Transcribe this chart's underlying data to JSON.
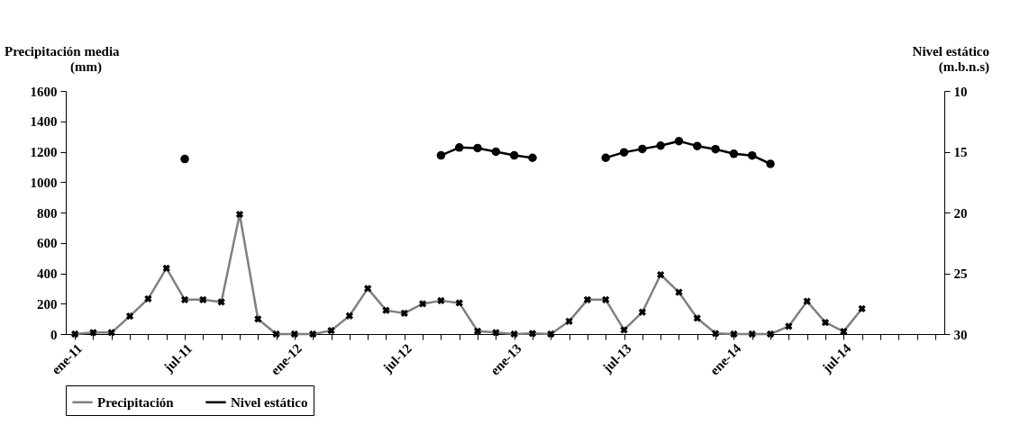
{
  "chart_data": {
    "type": "line",
    "ylabel": "Precipitación media (mm)",
    "y2label": "Nivel estático (m.b.n.s)",
    "categories": [
      "ene-11",
      null,
      null,
      null,
      null,
      null,
      "jul-11",
      null,
      null,
      null,
      null,
      null,
      "ene-12",
      null,
      null,
      null,
      null,
      null,
      "jul-12",
      null,
      null,
      null,
      null,
      null,
      "ene-13",
      null,
      null,
      null,
      null,
      null,
      "jul-13",
      null,
      null,
      null,
      null,
      null,
      "ene-14",
      null,
      null,
      null,
      null,
      null,
      "jul-14",
      null,
      null,
      null,
      null,
      null
    ],
    "series": [
      {
        "name": "Precipitación",
        "color": "#808080",
        "marker": "cross",
        "values": [
          0,
          10,
          10,
          118,
          232,
          433,
          226,
          226,
          211,
          788,
          99,
          0,
          0,
          0,
          23,
          120,
          300,
          156,
          137,
          199,
          220,
          205,
          19,
          10,
          0,
          4,
          0,
          84,
          226,
          226,
          27,
          144,
          391,
          275,
          104,
          4,
          0,
          0,
          0,
          51,
          216,
          76,
          17,
          167,
          null,
          null,
          null,
          null
        ]
      },
      {
        "name": "Nivel estático",
        "color": "#000000",
        "marker": "circle",
        "axis": "y2",
        "values": [
          null,
          null,
          null,
          null,
          null,
          null,
          15.6,
          null,
          null,
          null,
          null,
          null,
          null,
          null,
          null,
          null,
          null,
          null,
          null,
          null,
          15.3,
          14.65,
          14.7,
          15.0,
          15.3,
          15.5,
          null,
          null,
          null,
          15.5,
          15.05,
          14.77,
          14.5,
          14.13,
          14.53,
          14.79,
          15.17,
          15.31,
          16.0,
          null,
          null,
          null,
          null,
          null,
          null,
          null,
          null,
          null
        ]
      }
    ],
    "ylim": [
      0,
      1600
    ],
    "yticks": [
      0,
      200,
      400,
      600,
      800,
      1000,
      1200,
      1400,
      1600
    ],
    "y2lim": [
      30,
      10
    ],
    "y2ticks": [
      10,
      15,
      20,
      25,
      30
    ],
    "grid": false,
    "legend": "bottom",
    "line_style": "solid"
  }
}
